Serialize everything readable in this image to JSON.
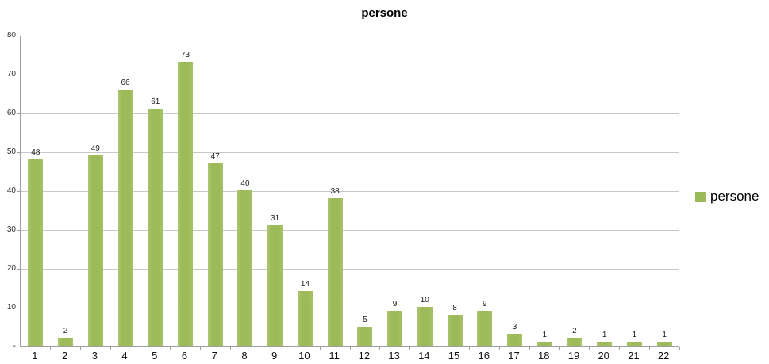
{
  "title": "persone",
  "legend": {
    "items": [
      {
        "label": "persone",
        "color": "#9BBB59"
      }
    ]
  },
  "chart_data": {
    "type": "bar",
    "title": "persone",
    "series_name": "persone",
    "categories": [
      "1",
      "2",
      "3",
      "4",
      "5",
      "6",
      "7",
      "8",
      "9",
      "10",
      "11",
      "12",
      "13",
      "14",
      "15",
      "16",
      "17",
      "18",
      "19",
      "20",
      "21",
      "22"
    ],
    "values": [
      48,
      2,
      49,
      66,
      61,
      73,
      47,
      40,
      31,
      14,
      38,
      5,
      9,
      10,
      8,
      9,
      3,
      1,
      2,
      1,
      1,
      1
    ],
    "xlabel": "",
    "ylabel": "",
    "ylim": [
      0,
      80
    ],
    "ytick_interval": 10,
    "ytick_labels_bottom_to_top": [
      "-",
      "10",
      "20",
      "30",
      "40",
      "50",
      "60",
      "70",
      "80"
    ],
    "grid": "horizontal",
    "show_data_labels": true,
    "legend_position": "right",
    "colors": {
      "bar": "#9BBB59",
      "gridline": "#C8C8C8",
      "axis": "#9E9E9E",
      "label_text": "#1A1A1A"
    }
  }
}
